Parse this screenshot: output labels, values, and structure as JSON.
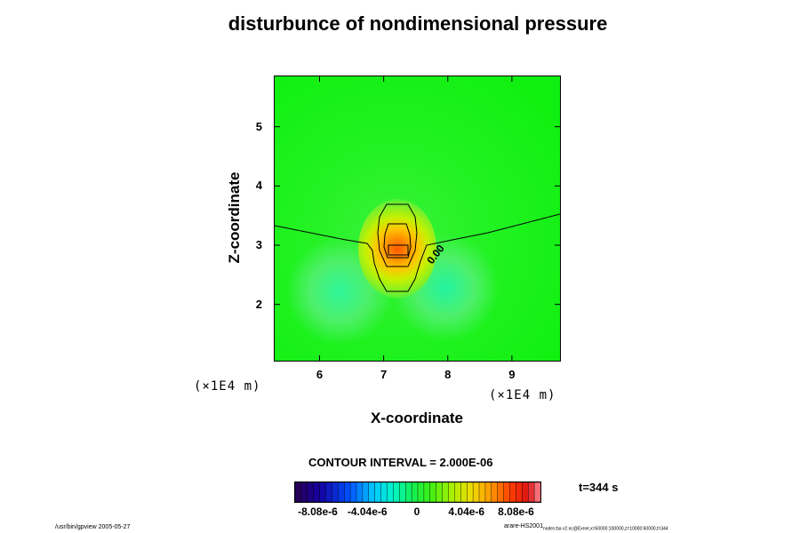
{
  "chart_data": {
    "type": "heatmap",
    "title": "disturbunce of nondimensional pressure",
    "xlabel": "X-coordinate",
    "ylabel": "Z-coordinate",
    "x_unit_label": "(×1E4 m)",
    "xlim": [
      5.3,
      9.75
    ],
    "ylim": [
      1.05,
      5.85
    ],
    "x_ticks": [
      6,
      7,
      8,
      9
    ],
    "y_ticks": [
      2,
      3,
      4,
      5
    ],
    "contour_interval": "CONTOUR INTERVAL = 2.000E-06",
    "contour_label": "0.00",
    "colorbar": {
      "ticks": [
        "-8.08e-6",
        "-4.04e-6",
        "0",
        "4.04e-6",
        "8.08e-6"
      ],
      "min": -1e-05,
      "max": 1e-05
    },
    "field_extrema": {
      "max": 6e-06,
      "min": -4e-07,
      "max_center": [
        7.2,
        2.95
      ]
    },
    "time_label": "t=344 s",
    "footer_left": "/usr/bin/gpview 2005-05-27",
    "footer_right_main": "arare-HS2001",
    "footer_right_sub": "nodes:ba v2.nc@Exner,x=50000:100000,z=10000:60000,t=344"
  }
}
